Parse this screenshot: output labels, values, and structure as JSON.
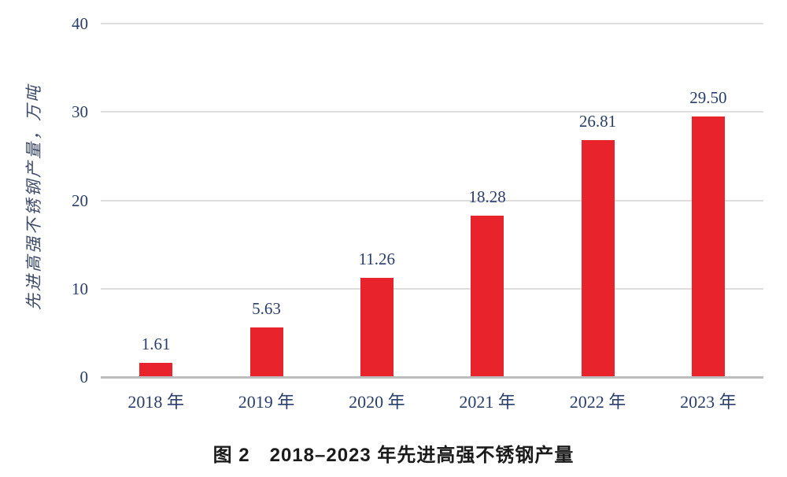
{
  "page": {
    "background": "#ffffff"
  },
  "chart_data": {
    "type": "bar",
    "categories": [
      "2018 年",
      "2019 年",
      "2020 年",
      "2021 年",
      "2022 年",
      "2023 年"
    ],
    "values": [
      1.61,
      5.63,
      11.26,
      18.28,
      26.81,
      29.5
    ],
    "value_labels": [
      "1.61",
      "5.63",
      "11.26",
      "18.28",
      "26.81",
      "29.50"
    ],
    "title": "图 2　2018–2023 年先进高强不锈钢产量",
    "xlabel": "",
    "ylabel": "先进高强不锈钢产量，万吨",
    "ylim": [
      0,
      40
    ],
    "yticks": [
      0,
      10,
      20,
      30,
      40
    ],
    "grid": true,
    "legend": "none",
    "colors": {
      "bar": "#e8232b",
      "axis_text": "#293e6b",
      "gridline": "#dedede",
      "zero_line": "#bdbdbd",
      "caption_text": "#1b1b1b"
    }
  }
}
